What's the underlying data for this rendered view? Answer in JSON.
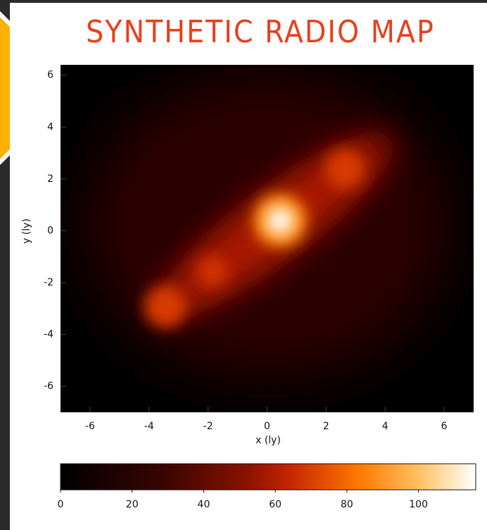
{
  "chart_data": {
    "type": "heatmap",
    "title": "SYNTHETIC RADIO MAP",
    "xlabel": "x (ly)",
    "ylabel": "y (ly)",
    "xlim": [
      -7,
      7
    ],
    "ylim": [
      -7,
      6.4
    ],
    "xticks": [
      -6,
      -4,
      -2,
      0,
      2,
      4,
      6
    ],
    "yticks": [
      -6,
      -4,
      -2,
      0,
      2,
      4,
      6
    ],
    "colorbar": {
      "lim": [
        0,
        116
      ],
      "ticks": [
        0,
        20,
        40,
        60,
        80,
        100
      ]
    }
  }
}
